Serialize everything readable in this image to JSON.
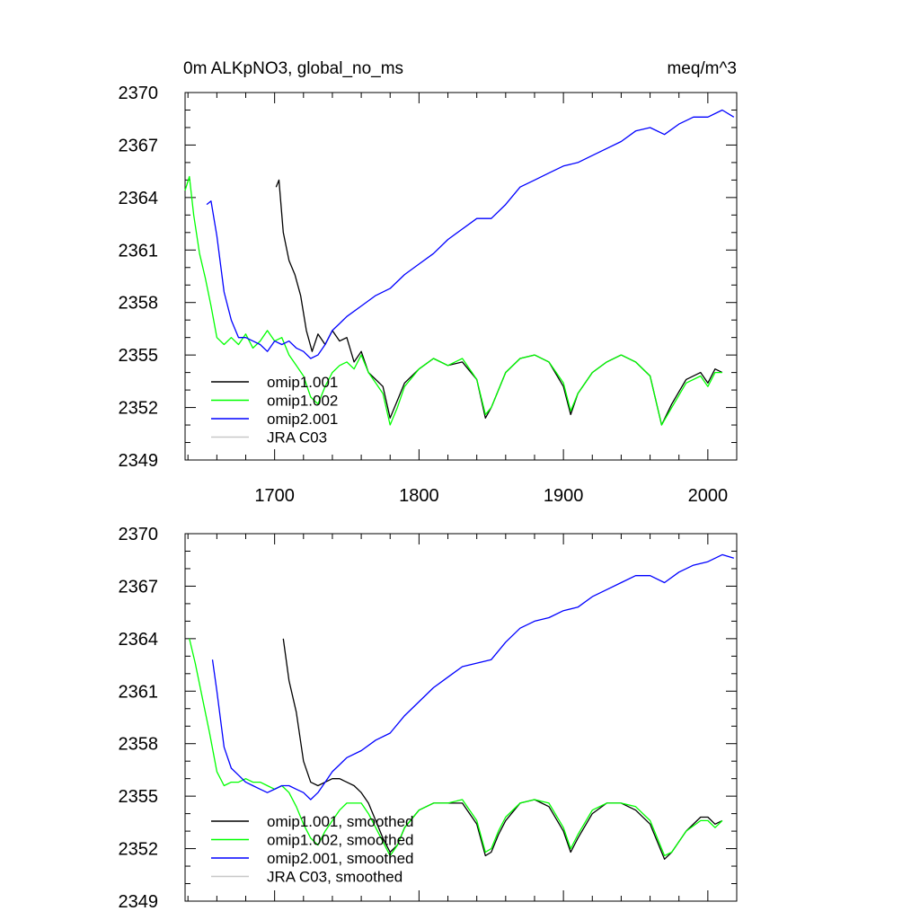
{
  "chart_data": [
    {
      "type": "line",
      "title": "0m ALKpNO3, global_no_ms",
      "units": "meq/m^3",
      "xlim": [
        1638,
        2020
      ],
      "ylim": [
        2349,
        2370
      ],
      "yticks": [
        2349,
        2352,
        2355,
        2358,
        2361,
        2364,
        2367,
        2370
      ],
      "ytick_labels": [
        "2349",
        "2352",
        "2355",
        "2358",
        "2361",
        "2364",
        "2367",
        "2370"
      ],
      "xticks": [
        1700,
        1800,
        1900,
        2000
      ],
      "xtick_labels": [
        "1700",
        "1800",
        "1900",
        "2000"
      ],
      "legend_position": "bottom-left",
      "grid": false,
      "series": [
        {
          "name": "omip1.001",
          "color": "#000000",
          "x": [
            1701,
            1703,
            1706,
            1710,
            1714,
            1718,
            1722,
            1726,
            1730,
            1735,
            1740,
            1745,
            1750,
            1755,
            1760,
            1765,
            1770,
            1775,
            1780,
            1785,
            1790,
            1800,
            1810,
            1820,
            1830,
            1840,
            1846,
            1850,
            1855,
            1860,
            1870,
            1880,
            1890,
            1900,
            1905,
            1910,
            1920,
            1930,
            1940,
            1950,
            1960,
            1968,
            1975,
            1985,
            1995,
            2000,
            2005,
            2010
          ],
          "y": [
            2364.6,
            2365.0,
            2362.0,
            2360.4,
            2359.6,
            2358.4,
            2356.4,
            2355.2,
            2356.2,
            2355.6,
            2356.4,
            2355.8,
            2356.0,
            2354.6,
            2355.2,
            2354.0,
            2353.6,
            2353.2,
            2351.4,
            2352.4,
            2353.4,
            2354.2,
            2354.8,
            2354.4,
            2354.6,
            2353.6,
            2351.4,
            2352.0,
            2353.0,
            2354.0,
            2354.8,
            2355.0,
            2354.6,
            2353.2,
            2351.6,
            2352.8,
            2354.0,
            2354.6,
            2355.0,
            2354.6,
            2353.8,
            2351.0,
            2352.2,
            2353.6,
            2354.0,
            2353.4,
            2354.2,
            2354.0
          ]
        },
        {
          "name": "omip1.002",
          "color": "#00ff00",
          "x": [
            1638,
            1641,
            1644,
            1648,
            1652,
            1656,
            1660,
            1665,
            1670,
            1675,
            1680,
            1685,
            1690,
            1695,
            1700,
            1705,
            1710,
            1715,
            1720,
            1725,
            1730,
            1735,
            1740,
            1745,
            1750,
            1755,
            1760,
            1765,
            1770,
            1775,
            1780,
            1785,
            1790,
            1800,
            1810,
            1820,
            1830,
            1840,
            1846,
            1850,
            1855,
            1860,
            1870,
            1880,
            1890,
            1900,
            1905,
            1910,
            1920,
            1930,
            1940,
            1950,
            1960,
            1968,
            1975,
            1985,
            1995,
            2000,
            2005,
            2010
          ],
          "y": [
            2364.4,
            2365.2,
            2363.0,
            2360.8,
            2359.4,
            2357.8,
            2356.0,
            2355.6,
            2356.0,
            2355.6,
            2356.2,
            2355.4,
            2355.8,
            2356.4,
            2355.8,
            2356.0,
            2355.0,
            2354.4,
            2353.8,
            2352.6,
            2352.2,
            2353.2,
            2354.0,
            2354.4,
            2354.6,
            2354.2,
            2355.0,
            2354.0,
            2353.4,
            2352.8,
            2351.0,
            2352.0,
            2353.2,
            2354.2,
            2354.8,
            2354.4,
            2354.8,
            2353.6,
            2351.6,
            2352.0,
            2353.0,
            2354.0,
            2354.8,
            2355.0,
            2354.6,
            2353.4,
            2351.8,
            2352.8,
            2354.0,
            2354.6,
            2355.0,
            2354.6,
            2353.8,
            2351.0,
            2352.0,
            2353.4,
            2353.8,
            2353.2,
            2354.0,
            2354.0
          ]
        },
        {
          "name": "omip2.001",
          "color": "#0000ff",
          "x": [
            1653,
            1656,
            1660,
            1665,
            1670,
            1675,
            1680,
            1685,
            1690,
            1695,
            1700,
            1705,
            1710,
            1715,
            1720,
            1725,
            1730,
            1735,
            1740,
            1745,
            1750,
            1760,
            1770,
            1780,
            1790,
            1800,
            1810,
            1820,
            1830,
            1840,
            1850,
            1860,
            1870,
            1880,
            1890,
            1900,
            1910,
            1920,
            1930,
            1940,
            1950,
            1960,
            1970,
            1980,
            1990,
            2000,
            2010,
            2018
          ],
          "y": [
            2363.6,
            2363.8,
            2361.8,
            2358.6,
            2357.0,
            2356.0,
            2356.0,
            2355.8,
            2355.6,
            2355.2,
            2355.8,
            2355.6,
            2355.8,
            2355.4,
            2355.2,
            2354.8,
            2355.0,
            2355.6,
            2356.4,
            2356.8,
            2357.2,
            2357.8,
            2358.4,
            2358.8,
            2359.6,
            2360.2,
            2360.8,
            2361.6,
            2362.2,
            2362.8,
            2362.8,
            2363.6,
            2364.6,
            2365.0,
            2365.4,
            2365.8,
            2366.0,
            2366.4,
            2366.8,
            2367.2,
            2367.8,
            2368.0,
            2367.6,
            2368.2,
            2368.6,
            2368.6,
            2369.0,
            2368.6
          ]
        },
        {
          "name": "JRA C03",
          "color": "#c8c8c8",
          "x": [],
          "y": []
        }
      ]
    },
    {
      "type": "line",
      "title": "",
      "xlim": [
        1638,
        2020
      ],
      "ylim": [
        2349,
        2370
      ],
      "yticks": [
        2349,
        2352,
        2355,
        2358,
        2361,
        2364,
        2367,
        2370
      ],
      "ytick_labels": [
        "2349",
        "2352",
        "2355",
        "2358",
        "2361",
        "2364",
        "2367",
        "2370"
      ],
      "xticks": [
        1700,
        1800,
        1900,
        2000
      ],
      "legend_position": "bottom-left",
      "grid": false,
      "series": [
        {
          "name": "omip1.001, smoothed",
          "color": "#000000",
          "x": [
            1706,
            1710,
            1715,
            1720,
            1725,
            1730,
            1735,
            1740,
            1745,
            1750,
            1755,
            1760,
            1765,
            1770,
            1775,
            1780,
            1785,
            1790,
            1800,
            1810,
            1820,
            1830,
            1840,
            1846,
            1850,
            1855,
            1860,
            1870,
            1880,
            1890,
            1900,
            1905,
            1910,
            1920,
            1930,
            1940,
            1950,
            1960,
            1965,
            1970,
            1975,
            1985,
            1995,
            2000,
            2005,
            2010
          ],
          "y": [
            2364.0,
            2361.6,
            2359.8,
            2357.0,
            2355.8,
            2355.6,
            2355.8,
            2356.0,
            2356.0,
            2355.8,
            2355.6,
            2355.2,
            2354.6,
            2353.6,
            2352.6,
            2351.8,
            2352.2,
            2353.2,
            2354.2,
            2354.6,
            2354.6,
            2354.6,
            2353.4,
            2351.6,
            2351.8,
            2352.8,
            2353.6,
            2354.6,
            2354.8,
            2354.4,
            2353.0,
            2351.8,
            2352.6,
            2354.0,
            2354.6,
            2354.6,
            2354.2,
            2353.4,
            2352.4,
            2351.4,
            2351.8,
            2353.0,
            2353.8,
            2353.8,
            2353.4,
            2353.6
          ]
        },
        {
          "name": "omip1.002, smoothed",
          "color": "#00ff00",
          "x": [
            1641,
            1645,
            1650,
            1655,
            1660,
            1665,
            1670,
            1675,
            1680,
            1685,
            1690,
            1695,
            1700,
            1705,
            1710,
            1715,
            1720,
            1725,
            1730,
            1735,
            1740,
            1745,
            1750,
            1755,
            1760,
            1765,
            1770,
            1775,
            1780,
            1785,
            1790,
            1800,
            1810,
            1820,
            1830,
            1840,
            1846,
            1850,
            1855,
            1860,
            1870,
            1880,
            1890,
            1900,
            1905,
            1910,
            1920,
            1930,
            1940,
            1950,
            1960,
            1965,
            1970,
            1975,
            1985,
            1995,
            2000,
            2005,
            2010
          ],
          "y": [
            2364.0,
            2362.6,
            2360.6,
            2358.6,
            2356.4,
            2355.6,
            2355.8,
            2355.8,
            2356.0,
            2355.8,
            2355.8,
            2355.6,
            2355.4,
            2355.6,
            2355.2,
            2354.4,
            2353.4,
            2352.6,
            2352.2,
            2353.0,
            2353.6,
            2354.2,
            2354.6,
            2354.6,
            2354.6,
            2354.0,
            2353.2,
            2352.4,
            2351.6,
            2352.2,
            2353.2,
            2354.2,
            2354.6,
            2354.6,
            2354.8,
            2353.6,
            2351.8,
            2352.0,
            2353.0,
            2353.8,
            2354.6,
            2354.8,
            2354.6,
            2353.2,
            2352.0,
            2352.8,
            2354.2,
            2354.6,
            2354.6,
            2354.4,
            2353.6,
            2352.6,
            2351.6,
            2351.8,
            2353.0,
            2353.6,
            2353.6,
            2353.2,
            2353.6
          ]
        },
        {
          "name": "omip2.001, smoothed",
          "color": "#0000ff",
          "x": [
            1657,
            1660,
            1665,
            1670,
            1675,
            1680,
            1685,
            1690,
            1695,
            1700,
            1705,
            1710,
            1715,
            1720,
            1725,
            1730,
            1735,
            1740,
            1745,
            1750,
            1760,
            1770,
            1780,
            1790,
            1800,
            1810,
            1820,
            1830,
            1840,
            1850,
            1860,
            1870,
            1880,
            1890,
            1900,
            1910,
            1920,
            1930,
            1940,
            1950,
            1960,
            1970,
            1980,
            1990,
            2000,
            2005,
            2010,
            2018
          ],
          "y": [
            2362.8,
            2361.0,
            2357.8,
            2356.6,
            2356.2,
            2355.8,
            2355.6,
            2355.4,
            2355.2,
            2355.4,
            2355.6,
            2355.6,
            2355.4,
            2355.2,
            2354.8,
            2355.2,
            2355.8,
            2356.4,
            2356.8,
            2357.2,
            2357.6,
            2358.2,
            2358.6,
            2359.6,
            2360.4,
            2361.2,
            2361.8,
            2362.4,
            2362.6,
            2362.8,
            2363.8,
            2364.6,
            2365.0,
            2365.2,
            2365.6,
            2365.8,
            2366.4,
            2366.8,
            2367.2,
            2367.6,
            2367.6,
            2367.2,
            2367.8,
            2368.2,
            2368.4,
            2368.6,
            2368.8,
            2368.6
          ]
        },
        {
          "name": "JRA C03, smoothed",
          "color": "#c8c8c8",
          "x": [],
          "y": []
        }
      ]
    }
  ]
}
